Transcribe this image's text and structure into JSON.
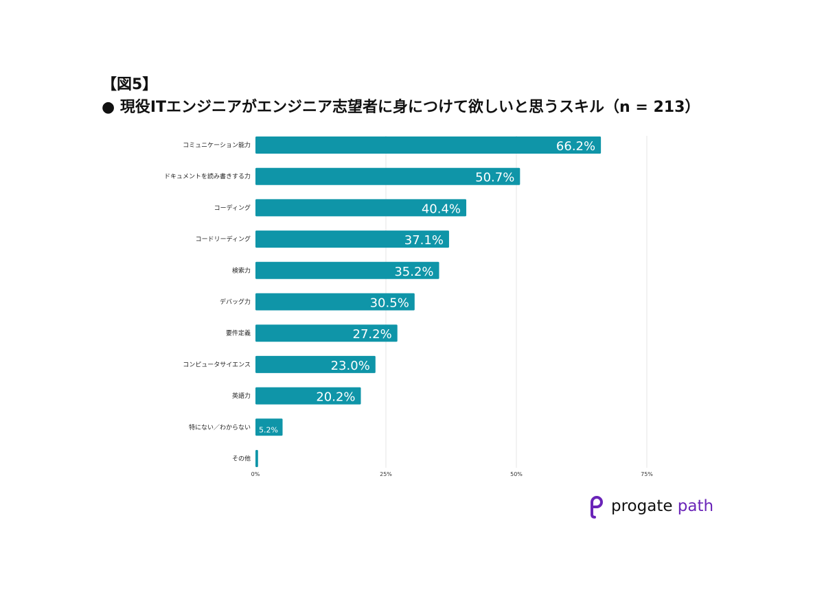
{
  "figure_label": "【図5】",
  "title": "● 現役ITエンジニアがエンジニア志望者に身につけて欲しいと思うスキル（n = 213）",
  "chart_data": {
    "type": "bar",
    "orientation": "horizontal",
    "categories": [
      "コミュニケーション能力",
      "ドキュメントを読み書きする力",
      "コーディング",
      "コードリーディング",
      "検索力",
      "デバッグ力",
      "要件定義",
      "コンピュータサイエンス",
      "英語力",
      "特にない／わからない",
      "その他"
    ],
    "values": [
      66.2,
      50.7,
      40.4,
      37.1,
      35.2,
      30.5,
      27.2,
      23.0,
      20.2,
      5.2,
      0.5
    ],
    "value_labels": [
      "66.2%",
      "50.7%",
      "40.4%",
      "37.1%",
      "35.2%",
      "30.5%",
      "27.2%",
      "23.0%",
      "20.2%",
      "5.2%",
      ""
    ],
    "xticks": [
      0,
      25,
      50,
      75
    ],
    "xtick_labels": [
      "0%",
      "25%",
      "50%",
      "75%"
    ],
    "xlim": [
      0,
      75
    ],
    "grid": true,
    "bar_color": "#0f95a8",
    "label_color": "#ffffff"
  },
  "logo": {
    "word1": "progate",
    "word2": "path",
    "icon": "progate-p-icon",
    "accent_color": "#6a24b8"
  }
}
